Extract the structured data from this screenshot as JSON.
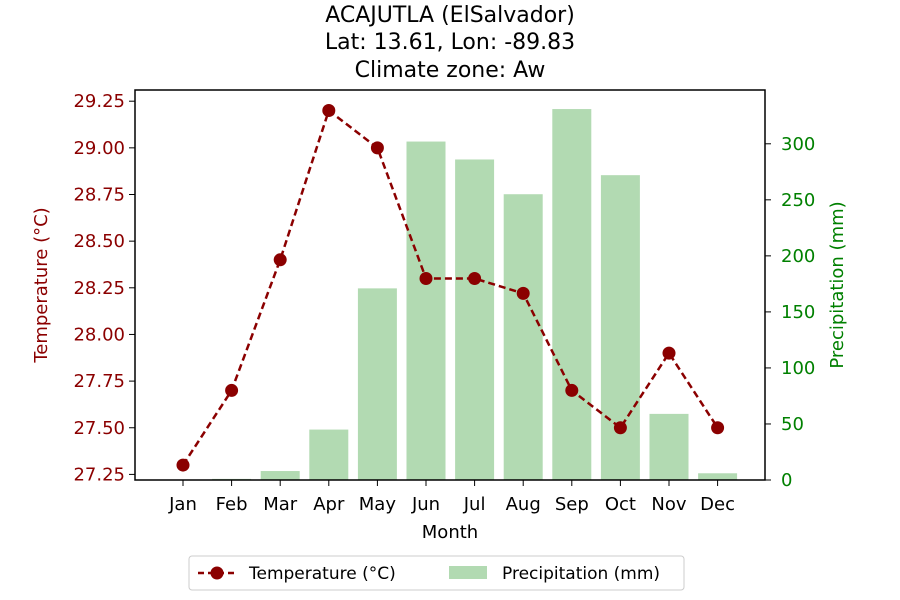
{
  "chart_data": {
    "type": "bar+line",
    "title_lines": [
      "ACAJUTLA (ElSalvador)",
      "Lat: 13.61, Lon: -89.83",
      "Climate zone: Aw"
    ],
    "xlabel": "Month",
    "categories": [
      "Jan",
      "Feb",
      "Mar",
      "Apr",
      "May",
      "Jun",
      "Jul",
      "Aug",
      "Sep",
      "Oct",
      "Nov",
      "Dec"
    ],
    "temperature": {
      "name": "Temperature (°C)",
      "axis_label": "Temperature (°C)",
      "values": [
        27.3,
        27.7,
        28.4,
        29.2,
        29.0,
        28.3,
        28.3,
        28.22,
        27.7,
        27.5,
        27.9,
        27.5
      ],
      "ylim": [
        27.22,
        29.31
      ],
      "ticks": [
        "27.25",
        "27.50",
        "27.75",
        "28.00",
        "28.25",
        "28.50",
        "28.75",
        "29.00",
        "29.25"
      ],
      "color": "#8b0000"
    },
    "precipitation": {
      "name": "Precipitation (mm)",
      "axis_label": "Precipitation (mm)",
      "values": [
        0,
        1,
        8,
        45,
        171,
        302,
        286,
        255,
        331,
        272,
        59,
        6
      ],
      "ylim": [
        0,
        348
      ],
      "ticks": [
        "0",
        "50",
        "100",
        "150",
        "200",
        "250",
        "300"
      ],
      "color": "#b2dab2"
    },
    "legend_position": "bottom-center",
    "grid": false
  }
}
